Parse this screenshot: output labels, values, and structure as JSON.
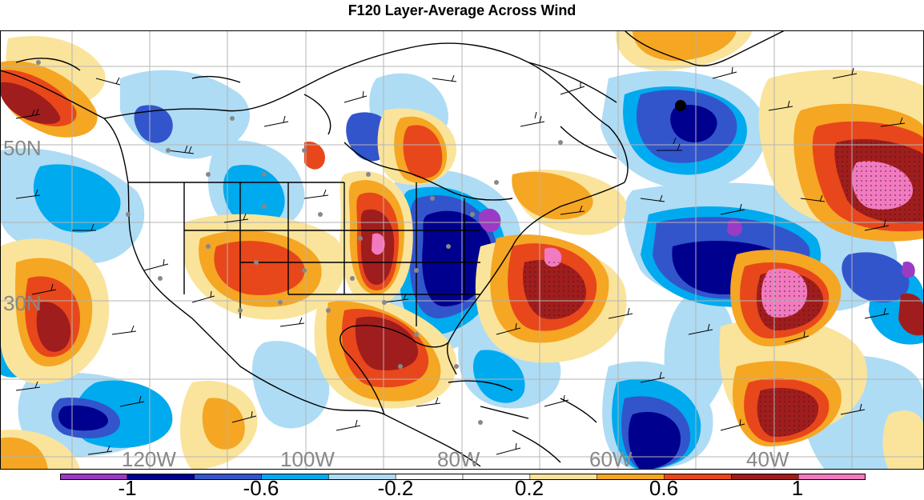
{
  "title": "F120 Layer-Average Across Wind",
  "map": {
    "lat_labels": [
      "50N",
      "30N"
    ],
    "lon_labels": [
      "120W",
      "100W",
      "80W",
      "60W",
      "40W"
    ]
  },
  "colorbar": {
    "labels": [
      "-1",
      "-0.6",
      "-0.2",
      "0.2",
      "0.6",
      "1"
    ],
    "colors": [
      "#9b3bc4",
      "#00008f",
      "#3355cc",
      "#00aaee",
      "#aedcf5",
      "#ffffff",
      "#ffffff",
      "#fae49b",
      "#f5a623",
      "#e8471b",
      "#a01d1d",
      "#f17ac0"
    ]
  }
}
